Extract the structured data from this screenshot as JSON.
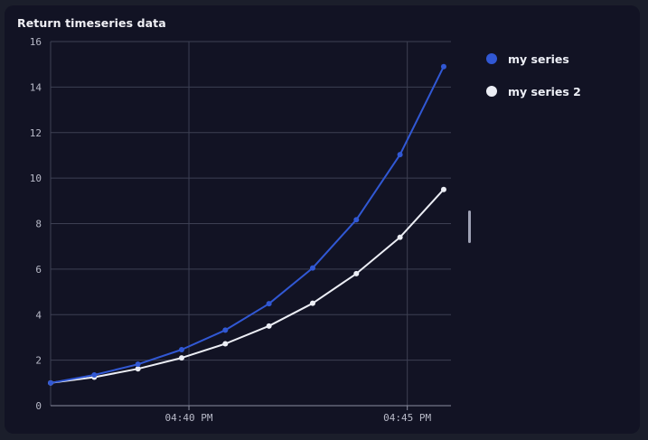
{
  "panel": {
    "title": "Return timeseries data"
  },
  "legend": {
    "items": [
      {
        "label": "my series",
        "color": "#3158d4"
      },
      {
        "label": "my series 2",
        "color": "#eceef5"
      }
    ]
  },
  "colors": {
    "panel_background": "#121324",
    "page_background": "#1b1e2b",
    "grid": "#3d4053",
    "axis": "#8a8da0",
    "tick_text": "#b8bac8"
  },
  "chart_data": {
    "type": "line",
    "title": "Return timeseries data",
    "xlabel": "",
    "ylabel": "",
    "ylim": [
      0,
      16
    ],
    "yticks": [
      0,
      2,
      4,
      6,
      8,
      10,
      12,
      14,
      16
    ],
    "xlim": [
      "04:36:50 PM",
      "04:46:00 PM"
    ],
    "xticks": [
      {
        "value": "04:40 PM",
        "label": "04:40 PM"
      },
      {
        "value": "04:45 PM",
        "label": "04:45 PM"
      }
    ],
    "x": [
      "04:36:50 PM",
      "04:37:50 PM",
      "04:38:50 PM",
      "04:39:50 PM",
      "04:40:50 PM",
      "04:41:50 PM",
      "04:42:50 PM",
      "04:43:50 PM",
      "04:44:50 PM",
      "04:45:50 PM"
    ],
    "series": [
      {
        "name": "my series",
        "color": "#3158d4",
        "values": [
          1.0,
          1.35,
          1.82,
          2.46,
          3.32,
          4.48,
          6.05,
          8.17,
          11.03,
          14.9
        ]
      },
      {
        "name": "my series 2",
        "color": "#eceef5",
        "values": [
          1.0,
          1.25,
          1.62,
          2.1,
          2.72,
          3.5,
          4.5,
          5.8,
          7.4,
          9.5
        ]
      }
    ],
    "grid": true,
    "legend": "right"
  }
}
